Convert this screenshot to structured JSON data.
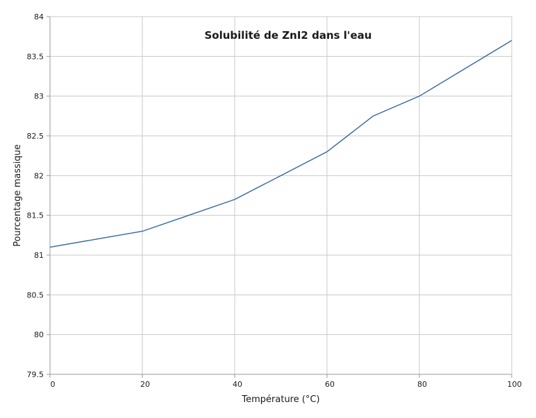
{
  "chart_data": {
    "type": "line",
    "title": "Solubilité de ZnI2 dans l'eau",
    "xlabel": "Température (°C)",
    "ylabel": "Pourcentage massique",
    "x": [
      0,
      10,
      20,
      30,
      40,
      50,
      60,
      70,
      80,
      90,
      100
    ],
    "values": [
      81.1,
      81.2,
      81.3,
      81.5,
      81.7,
      82.0,
      82.3,
      82.75,
      83.0,
      83.35,
      83.7
    ],
    "xlim": [
      0,
      100
    ],
    "ylim": [
      79.5,
      84
    ],
    "x_ticks": [
      0,
      20,
      40,
      60,
      80,
      100
    ],
    "y_tick_step": 0.5,
    "x_tick_labels": [
      "0",
      "20",
      "40",
      "60",
      "80",
      "100"
    ],
    "y_tick_labels": [
      "79.5",
      "80",
      "80.5",
      "81",
      "81.5",
      "82",
      "82.5",
      "83",
      "83.5",
      "84"
    ],
    "grid": true,
    "legend": "none",
    "colors": {
      "line": "#3465a4",
      "grid": "#c9c9c9",
      "axis": "#999999",
      "text": "#1a1a1a",
      "background": "#ffffff"
    }
  }
}
